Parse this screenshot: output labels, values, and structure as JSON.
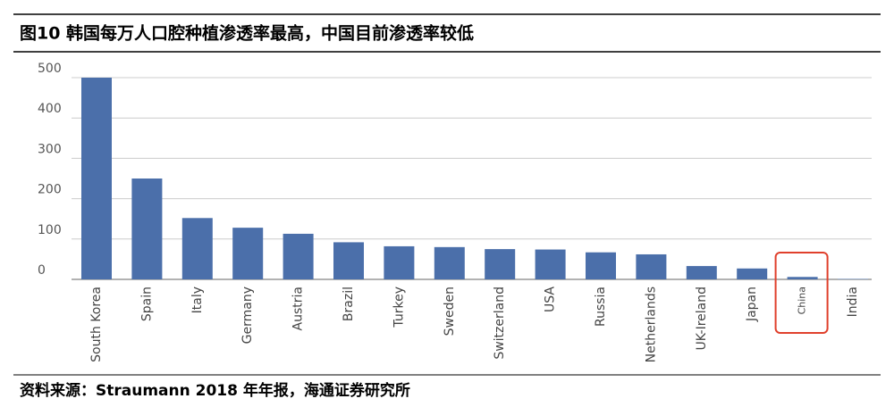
{
  "chart_data": {
    "type": "bar",
    "title": "图10 韩国每万人口腔种植渗透率最高，中国目前渗透率较低",
    "source": "资料来源：Straumann 2018 年年报，海通证券研究所",
    "categories": [
      "South Korea",
      "Spain",
      "Italy",
      "Germany",
      "Austria",
      "Brazil",
      "Turkey",
      "Sweden",
      "Switzerland",
      "USA",
      "Russia",
      "Netherlands",
      "UK-Ireland",
      "Japan",
      "China",
      "India"
    ],
    "values": [
      500,
      250,
      152,
      128,
      113,
      92,
      82,
      80,
      75,
      74,
      67,
      62,
      33,
      27,
      6,
      1
    ],
    "color": "#4b6faa",
    "ylim": [
      0,
      500
    ],
    "yticks": [
      0,
      100,
      200,
      300,
      400,
      500
    ],
    "grid": true,
    "highlight": "China",
    "highlight_color": "#e0402c"
  }
}
